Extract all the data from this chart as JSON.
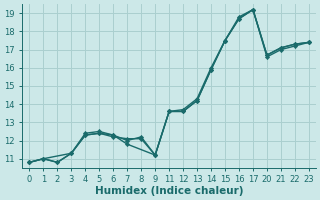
{
  "title": "",
  "xlabel": "Humidex (Indice chaleur)",
  "background_color": "#cce8e8",
  "grid_color": "#aacfcf",
  "line_color": "#1a6b6b",
  "xtick_labels": [
    "0",
    "1",
    "2",
    "3",
    "4",
    "5",
    "6",
    "7",
    "8",
    "9",
    "11",
    "12",
    "13",
    "14",
    "15",
    "16",
    "17",
    "20",
    "21",
    "22",
    "23"
  ],
  "series": [
    {
      "xi": [
        0,
        1,
        2,
        3,
        4,
        5,
        6,
        7,
        8,
        9,
        10,
        11,
        12,
        13,
        14,
        15,
        16,
        17,
        18,
        19,
        20
      ],
      "y": [
        10.8,
        11.0,
        10.8,
        11.3,
        12.3,
        12.4,
        12.2,
        12.1,
        12.1,
        11.2,
        13.6,
        13.6,
        14.2,
        15.9,
        17.5,
        18.7,
        19.2,
        16.7,
        17.1,
        17.3,
        17.4
      ]
    },
    {
      "xi": [
        0,
        1,
        3,
        4,
        5,
        6,
        7,
        9,
        10,
        11,
        12,
        13,
        14,
        15,
        16,
        17,
        18,
        19,
        20
      ],
      "y": [
        10.8,
        11.0,
        11.3,
        12.3,
        12.4,
        12.3,
        11.8,
        11.2,
        13.6,
        13.6,
        14.2,
        15.9,
        17.5,
        18.7,
        19.2,
        16.6,
        17.0,
        17.2,
        17.4
      ]
    },
    {
      "xi": [
        0,
        1,
        2,
        3,
        4,
        5,
        6,
        7,
        8,
        9,
        10,
        11,
        12,
        13,
        14,
        15,
        16,
        17,
        18,
        19,
        20
      ],
      "y": [
        10.8,
        11.0,
        10.8,
        11.3,
        12.4,
        12.5,
        12.3,
        12.0,
        12.2,
        11.2,
        13.6,
        13.7,
        14.3,
        16.0,
        17.5,
        18.8,
        19.2,
        16.7,
        17.1,
        17.3,
        17.4
      ]
    }
  ],
  "n_ticks": 21,
  "ylim": [
    10.5,
    19.5
  ],
  "yticks": [
    11,
    12,
    13,
    14,
    15,
    16,
    17,
    18,
    19
  ],
  "marker": "D",
  "marker_size": 2.2,
  "line_width": 1.0,
  "font_color": "#1a6b6b",
  "tick_font_size": 6.0,
  "xlabel_font_size": 7.5
}
